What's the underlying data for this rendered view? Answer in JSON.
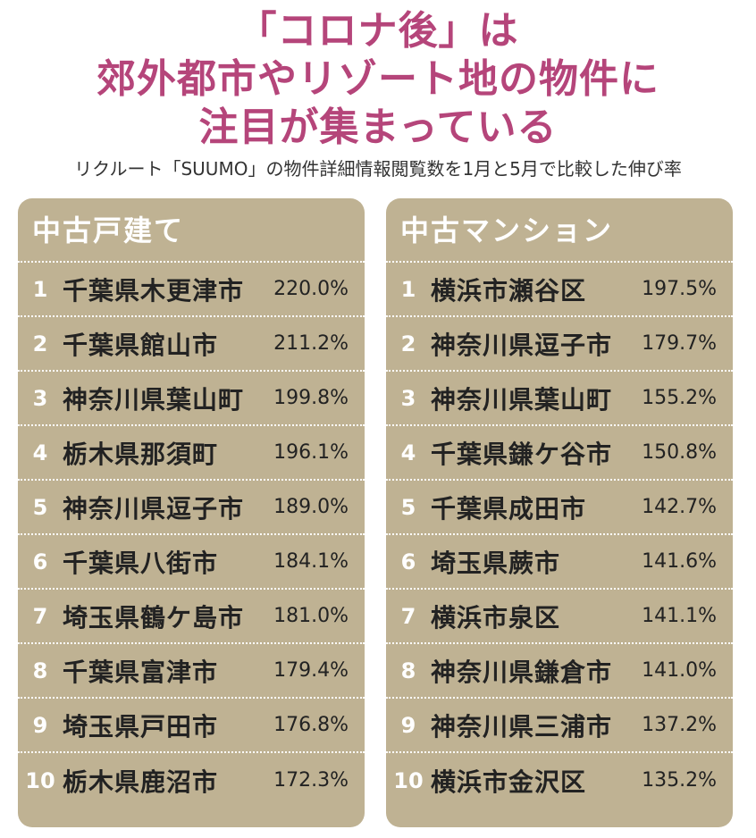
{
  "title": {
    "line1": "「コロナ後」は",
    "line2": "郊外都市やリゾート地の物件に",
    "line3": "注目が集まっている"
  },
  "subtitle": "リクルート「SUUMO」の物件詳細情報閲覧数を1月と5月で比較した伸び率",
  "colors": {
    "title": "#b5457a",
    "panel": "#bfb293"
  },
  "chart_data": [
    {
      "type": "table",
      "title": "中古戸建て",
      "rows": [
        {
          "rank": "1",
          "name": "千葉県木更津市",
          "value": "220.0%"
        },
        {
          "rank": "2",
          "name": "千葉県館山市",
          "value": "211.2%"
        },
        {
          "rank": "3",
          "name": "神奈川県葉山町",
          "value": "199.8%"
        },
        {
          "rank": "4",
          "name": "栃木県那須町",
          "value": "196.1%"
        },
        {
          "rank": "5",
          "name": "神奈川県逗子市",
          "value": "189.0%"
        },
        {
          "rank": "6",
          "name": "千葉県八街市",
          "value": "184.1%"
        },
        {
          "rank": "7",
          "name": "埼玉県鶴ケ島市",
          "value": "181.0%"
        },
        {
          "rank": "8",
          "name": "千葉県富津市",
          "value": "179.4%"
        },
        {
          "rank": "9",
          "name": "埼玉県戸田市",
          "value": "176.8%"
        },
        {
          "rank": "10",
          "name": "栃木県鹿沼市",
          "value": "172.3%"
        }
      ]
    },
    {
      "type": "table",
      "title": "中古マンション",
      "rows": [
        {
          "rank": "1",
          "name": "横浜市瀬谷区",
          "value": "197.5%"
        },
        {
          "rank": "2",
          "name": "神奈川県逗子市",
          "value": "179.7%"
        },
        {
          "rank": "3",
          "name": "神奈川県葉山町",
          "value": "155.2%"
        },
        {
          "rank": "4",
          "name": "千葉県鎌ケ谷市",
          "value": "150.8%"
        },
        {
          "rank": "5",
          "name": "千葉県成田市",
          "value": "142.7%"
        },
        {
          "rank": "6",
          "name": "埼玉県蕨市",
          "value": "141.6%"
        },
        {
          "rank": "7",
          "name": "横浜市泉区",
          "value": "141.1%"
        },
        {
          "rank": "8",
          "name": "神奈川県鎌倉市",
          "value": "141.0%"
        },
        {
          "rank": "9",
          "name": "神奈川県三浦市",
          "value": "137.2%"
        },
        {
          "rank": "10",
          "name": "横浜市金沢区",
          "value": "135.2%"
        }
      ]
    }
  ]
}
